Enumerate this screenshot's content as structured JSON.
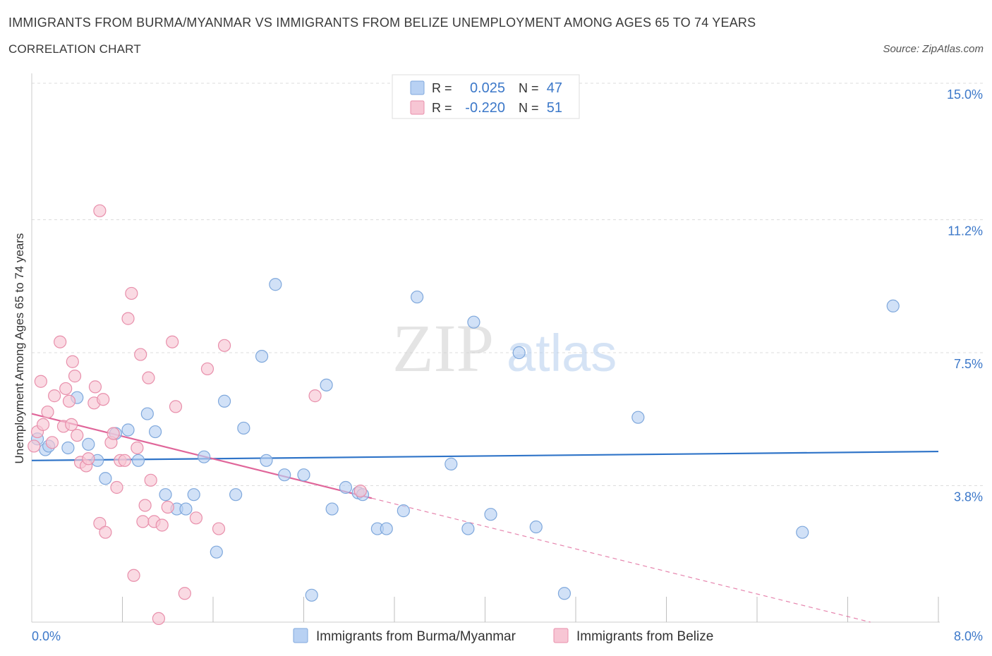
{
  "header": {
    "title": "IMMIGRANTS FROM BURMA/MYANMAR VS IMMIGRANTS FROM BELIZE UNEMPLOYMENT AMONG AGES 65 TO 74 YEARS",
    "subtitle": "CORRELATION CHART",
    "source": "Source: ZipAtlas.com"
  },
  "colors": {
    "blue_fill": "#b8d1f3",
    "blue_stroke": "#7fa8dc",
    "blue_line": "#2f74c8",
    "pink_fill": "#f7c6d4",
    "pink_stroke": "#e88fab",
    "pink_line": "#e0669a",
    "grid": "#dcdcdc",
    "axis_text_blue": "#3c78c9"
  },
  "watermark": {
    "zip": "ZIP",
    "atlas": "atlas"
  },
  "stats_legend": {
    "rows": [
      {
        "r_label": "R =",
        "r_value": "0.025",
        "n_label": "N =",
        "n_value": "47",
        "series": "blue"
      },
      {
        "r_label": "R =",
        "r_value": "-0.220",
        "n_label": "N =",
        "n_value": "51",
        "series": "pink"
      }
    ]
  },
  "chart_data": {
    "type": "scatter",
    "ylabel": "Unemployment Among Ages 65 to 74 years",
    "xlim": [
      0,
      8
    ],
    "ylim": [
      0,
      15
    ],
    "x_tick_labels": [
      {
        "value": 0,
        "label": "0.0%"
      },
      {
        "value": 8,
        "label": "8.0%"
      }
    ],
    "y_tick_labels": [
      {
        "value": 3.8,
        "label": "3.8%"
      },
      {
        "value": 7.5,
        "label": "7.5%"
      },
      {
        "value": 11.2,
        "label": "11.2%"
      },
      {
        "value": 15.0,
        "label": "15.0%"
      }
    ],
    "grid": true,
    "series": [
      {
        "name": "Immigrants from Burma/Myanmar",
        "color": "blue",
        "trend": {
          "x0": 0,
          "y0": 4.5,
          "x1": 8,
          "y1": 4.75
        },
        "points": [
          [
            0.05,
            5.1
          ],
          [
            0.12,
            4.8
          ],
          [
            0.15,
            4.9
          ],
          [
            0.32,
            4.85
          ],
          [
            0.4,
            6.25
          ],
          [
            0.5,
            4.95
          ],
          [
            0.58,
            4.5
          ],
          [
            0.65,
            4.0
          ],
          [
            0.74,
            5.25
          ],
          [
            0.85,
            5.35
          ],
          [
            0.94,
            4.5
          ],
          [
            1.02,
            5.8
          ],
          [
            1.09,
            5.3
          ],
          [
            1.18,
            3.55
          ],
          [
            1.28,
            3.15
          ],
          [
            1.36,
            3.15
          ],
          [
            1.43,
            3.55
          ],
          [
            1.52,
            4.6
          ],
          [
            1.63,
            1.95
          ],
          [
            1.7,
            6.15
          ],
          [
            1.8,
            3.55
          ],
          [
            1.87,
            5.4
          ],
          [
            2.03,
            7.4
          ],
          [
            2.07,
            4.5
          ],
          [
            2.15,
            9.4
          ],
          [
            2.23,
            4.1
          ],
          [
            2.4,
            4.1
          ],
          [
            2.47,
            0.75
          ],
          [
            2.6,
            6.6
          ],
          [
            2.65,
            3.15
          ],
          [
            2.77,
            3.75
          ],
          [
            2.88,
            3.6
          ],
          [
            2.92,
            3.55
          ],
          [
            3.05,
            2.6
          ],
          [
            3.13,
            2.6
          ],
          [
            3.28,
            3.1
          ],
          [
            3.4,
            9.05
          ],
          [
            3.7,
            4.4
          ],
          [
            3.85,
            2.6
          ],
          [
            3.9,
            8.35
          ],
          [
            4.05,
            3.0
          ],
          [
            4.3,
            7.5
          ],
          [
            4.45,
            2.65
          ],
          [
            4.7,
            0.8
          ],
          [
            5.35,
            5.7
          ],
          [
            6.8,
            2.5
          ],
          [
            7.6,
            8.8
          ]
        ]
      },
      {
        "name": "Immigrants from Belize",
        "color": "pink",
        "trend": {
          "x0": 0,
          "y0": 5.8,
          "x1": 3.0,
          "y1": 3.45
        },
        "trend_dashed": {
          "x0": 3.0,
          "y0": 3.45,
          "x1": 7.4,
          "y1": 0.0
        },
        "points": [
          [
            0.02,
            4.9
          ],
          [
            0.05,
            5.3
          ],
          [
            0.08,
            6.7
          ],
          [
            0.1,
            5.5
          ],
          [
            0.14,
            5.85
          ],
          [
            0.18,
            5.0
          ],
          [
            0.2,
            6.3
          ],
          [
            0.25,
            7.8
          ],
          [
            0.28,
            5.45
          ],
          [
            0.3,
            6.5
          ],
          [
            0.33,
            6.15
          ],
          [
            0.36,
            7.25
          ],
          [
            0.38,
            6.85
          ],
          [
            0.4,
            5.2
          ],
          [
            0.43,
            4.45
          ],
          [
            0.48,
            4.35
          ],
          [
            0.5,
            4.55
          ],
          [
            0.55,
            6.1
          ],
          [
            0.56,
            6.55
          ],
          [
            0.6,
            2.75
          ],
          [
            0.63,
            6.2
          ],
          [
            0.65,
            2.5
          ],
          [
            0.7,
            5.0
          ],
          [
            0.72,
            5.25
          ],
          [
            0.75,
            3.75
          ],
          [
            0.78,
            4.5
          ],
          [
            0.82,
            4.5
          ],
          [
            0.85,
            8.45
          ],
          [
            0.88,
            9.15
          ],
          [
            0.9,
            1.3
          ],
          [
            0.93,
            4.85
          ],
          [
            0.96,
            7.45
          ],
          [
            0.98,
            2.8
          ],
          [
            1.0,
            3.25
          ],
          [
            1.03,
            6.8
          ],
          [
            1.05,
            3.95
          ],
          [
            1.08,
            2.8
          ],
          [
            1.12,
            0.1
          ],
          [
            1.15,
            2.7
          ],
          [
            1.2,
            3.2
          ],
          [
            1.24,
            7.8
          ],
          [
            1.27,
            6.0
          ],
          [
            1.35,
            0.8
          ],
          [
            1.45,
            2.9
          ],
          [
            1.55,
            7.05
          ],
          [
            1.65,
            2.6
          ],
          [
            1.7,
            7.7
          ],
          [
            2.5,
            6.3
          ],
          [
            2.9,
            3.65
          ],
          [
            0.6,
            11.45
          ],
          [
            0.35,
            5.5
          ]
        ]
      }
    ]
  },
  "bottom_legend": [
    {
      "label": "Immigrants from Burma/Myanmar",
      "series": "blue"
    },
    {
      "label": "Immigrants from Belize",
      "series": "pink"
    }
  ]
}
